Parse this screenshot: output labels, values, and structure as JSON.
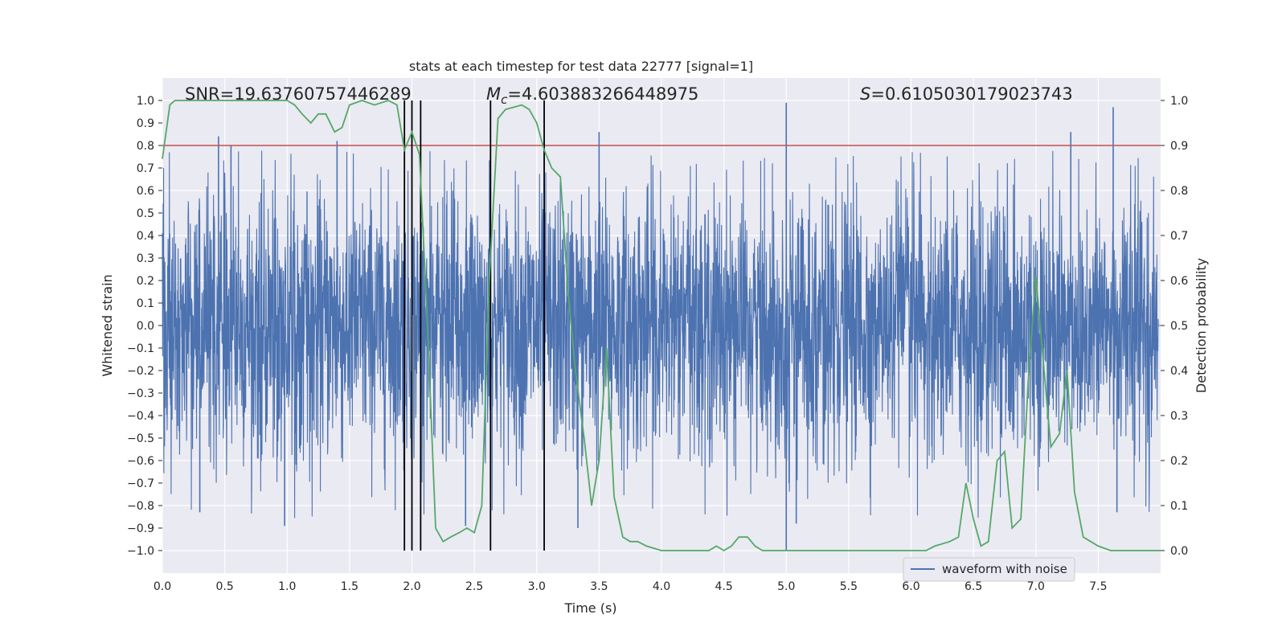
{
  "chart_data": {
    "type": "line",
    "title": "stats at each timestep for test data 22777 [signal=1]",
    "xlabel": "Time (s)",
    "ylabel_left": "Whitened strain",
    "ylabel_right": "Detection probability",
    "xlim": [
      0.0,
      8.0
    ],
    "ylim_left": [
      -1.1,
      1.1
    ],
    "ylim_right": [
      -0.05,
      1.05
    ],
    "x_ticks": [
      "0.0",
      "0.5",
      "1.0",
      "1.5",
      "2.0",
      "2.5",
      "3.0",
      "3.5",
      "4.0",
      "4.5",
      "5.0",
      "5.5",
      "6.0",
      "6.5",
      "7.0",
      "7.5"
    ],
    "y_left_ticks": [
      "1.0",
      "0.9",
      "0.8",
      "0.7",
      "0.6",
      "0.5",
      "0.4",
      "0.3",
      "0.2",
      "0.1",
      "0.0",
      "−0.1",
      "−0.2",
      "−0.3",
      "−0.4",
      "−0.5",
      "−0.6",
      "−0.7",
      "−0.8",
      "−0.9",
      "−1.0"
    ],
    "y_right_ticks": [
      "1.0",
      "0.9",
      "0.8",
      "0.7",
      "0.6",
      "0.5",
      "0.4",
      "0.3",
      "0.2",
      "0.1",
      "0.0"
    ],
    "annotations": {
      "snr": "SNR=19.63760757446289",
      "mc_symbol": "M",
      "mc_sub": "c",
      "mc_value": "=4.603883266448975",
      "s_symbol": "S",
      "s_value": "=0.6105030179023743"
    },
    "legend": {
      "label": "waveform with noise",
      "position": "lower-right"
    },
    "threshold": {
      "value_right_axis": 0.9,
      "color": "#c44e52"
    },
    "vertical_lines_x": [
      1.94,
      2.0,
      2.07,
      2.63,
      3.06
    ],
    "series": [
      {
        "name": "waveform with noise",
        "kind": "strain",
        "color": "#4c72b0",
        "typical_abs_amplitude": 0.4,
        "spike_positive_max": [
          [
            0.45,
            0.84
          ],
          [
            0.55,
            0.8
          ],
          [
            1.4,
            0.82
          ],
          [
            3.5,
            0.86
          ],
          [
            5.0,
            0.99
          ],
          [
            7.28,
            0.86
          ],
          [
            7.62,
            0.97
          ]
        ],
        "spike_negative_max": [
          [
            0.3,
            -0.83
          ],
          [
            0.98,
            -0.89
          ],
          [
            2.43,
            -0.89
          ],
          [
            3.33,
            -0.9
          ],
          [
            5.0,
            -1.0
          ],
          [
            5.08,
            -0.88
          ],
          [
            7.65,
            -0.83
          ]
        ]
      },
      {
        "name": "detection probability",
        "kind": "probability",
        "color": "#55a868",
        "x": [
          0.0,
          0.06,
          0.1,
          0.2,
          0.3,
          0.5,
          0.7,
          0.9,
          1.0,
          1.06,
          1.12,
          1.19,
          1.25,
          1.31,
          1.38,
          1.44,
          1.5,
          1.6,
          1.7,
          1.81,
          1.88,
          1.94,
          2.0,
          2.06,
          2.12,
          2.19,
          2.25,
          2.31,
          2.38,
          2.44,
          2.5,
          2.56,
          2.62,
          2.69,
          2.75,
          2.88,
          2.94,
          3.0,
          3.06,
          3.12,
          3.19,
          3.25,
          3.31,
          3.38,
          3.44,
          3.5,
          3.56,
          3.62,
          3.69,
          3.75,
          3.81,
          3.88,
          4.0,
          4.2,
          4.38,
          4.44,
          4.5,
          4.56,
          4.62,
          4.69,
          4.75,
          4.81,
          4.9,
          5.0,
          5.12,
          5.25,
          5.5,
          6.0,
          6.12,
          6.19,
          6.31,
          6.38,
          6.44,
          6.5,
          6.56,
          6.62,
          6.69,
          6.75,
          6.81,
          6.88,
          6.94,
          7.0,
          7.06,
          7.12,
          7.19,
          7.25,
          7.31,
          7.38,
          7.44,
          7.5,
          7.6,
          7.75,
          7.9,
          8.0
        ],
        "y": [
          0.87,
          0.99,
          1.0,
          1.0,
          1.0,
          1.0,
          1.0,
          1.0,
          1.0,
          0.99,
          0.97,
          0.95,
          0.97,
          0.97,
          0.93,
          0.94,
          0.99,
          1.0,
          0.99,
          1.0,
          0.99,
          0.89,
          0.93,
          0.88,
          0.53,
          0.05,
          0.02,
          0.03,
          0.04,
          0.05,
          0.04,
          0.1,
          0.6,
          0.96,
          0.98,
          0.99,
          0.98,
          0.95,
          0.89,
          0.85,
          0.83,
          0.58,
          0.4,
          0.25,
          0.1,
          0.2,
          0.45,
          0.12,
          0.03,
          0.02,
          0.02,
          0.01,
          0.0,
          0.0,
          0.0,
          0.01,
          0.0,
          0.01,
          0.03,
          0.03,
          0.01,
          0.0,
          0.0,
          0.0,
          0.0,
          0.0,
          0.0,
          0.0,
          0.0,
          0.01,
          0.02,
          0.03,
          0.15,
          0.07,
          0.01,
          0.02,
          0.2,
          0.22,
          0.05,
          0.07,
          0.38,
          0.61,
          0.42,
          0.23,
          0.26,
          0.4,
          0.13,
          0.03,
          0.02,
          0.01,
          0.0,
          0.0,
          0.0,
          0.0
        ]
      }
    ]
  }
}
